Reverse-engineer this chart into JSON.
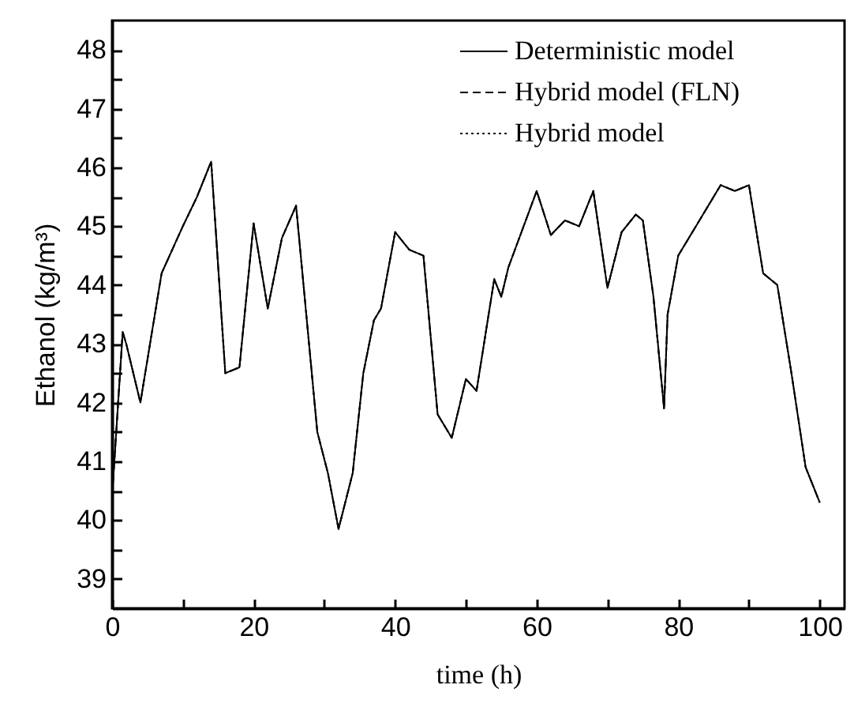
{
  "chart_data": {
    "type": "line",
    "xlabel": "time (h)",
    "ylabel": "Ethanol (kg/m³)",
    "x": [
      0,
      1.5,
      2,
      4,
      7,
      10,
      12,
      14,
      16,
      18,
      20,
      22,
      24,
      26,
      29,
      30.5,
      32,
      34,
      35.5,
      37,
      38,
      40,
      42,
      44,
      46,
      48,
      50,
      51.5,
      54,
      55,
      56,
      60,
      62,
      64,
      66,
      68,
      70,
      72,
      74,
      75,
      76.5,
      78,
      78.5,
      80,
      83,
      86,
      88,
      90,
      92,
      94,
      96,
      98,
      100
    ],
    "series": [
      {
        "name": "Deterministic model",
        "color": "#000000",
        "line_style": "solid",
        "values": [
          40.4,
          43.2,
          43,
          42,
          44.2,
          45,
          45.5,
          46.1,
          42.5,
          42.6,
          45.05,
          43.6,
          44.8,
          45.35,
          41.5,
          40.8,
          39.85,
          40.8,
          42.5,
          43.4,
          43.6,
          44.9,
          44.6,
          44.5,
          41.8,
          41.4,
          42.4,
          42.2,
          44.1,
          43.8,
          44.3,
          45.6,
          44.85,
          45.1,
          45,
          45.6,
          43.95,
          44.9,
          45.2,
          45.1,
          43.8,
          41.9,
          43.5,
          44.5,
          45.1,
          45.7,
          45.6,
          45.7,
          44.2,
          44,
          42.5,
          40.9,
          40.3
        ]
      },
      {
        "name": "Hybrid model (FLN)",
        "color": "#000000",
        "line_style": "dashed",
        "values": [
          40.4,
          43.2,
          43,
          42,
          44.2,
          45,
          45.5,
          46.1,
          42.5,
          42.6,
          45.05,
          43.6,
          44.8,
          45.35,
          41.5,
          40.8,
          39.85,
          40.8,
          42.5,
          43.4,
          43.6,
          44.9,
          44.6,
          44.5,
          41.8,
          41.4,
          42.4,
          42.2,
          44.1,
          43.8,
          44.3,
          45.6,
          44.85,
          45.1,
          45,
          45.6,
          43.95,
          44.9,
          45.2,
          45.1,
          43.8,
          41.9,
          43.5,
          44.5,
          45.1,
          45.7,
          45.6,
          45.7,
          44.2,
          44,
          42.5,
          40.9,
          40.3
        ]
      },
      {
        "name": "Hybrid model",
        "color": "#000000",
        "line_style": "dotted",
        "values": [
          40.4,
          43.2,
          43,
          42,
          44.2,
          45,
          45.5,
          46.1,
          42.5,
          42.6,
          45.05,
          43.6,
          44.8,
          45.35,
          41.5,
          40.8,
          39.85,
          40.8,
          42.5,
          43.4,
          43.6,
          44.9,
          44.6,
          44.5,
          41.8,
          41.4,
          42.4,
          42.2,
          44.1,
          43.8,
          44.3,
          45.6,
          44.85,
          45.1,
          45,
          45.6,
          43.95,
          44.9,
          45.2,
          45.1,
          43.8,
          41.9,
          43.5,
          44.5,
          45.1,
          45.7,
          45.6,
          45.7,
          44.2,
          44,
          42.5,
          40.9,
          40.3
        ]
      }
    ],
    "xlim": [
      0,
      103.5
    ],
    "xticks": [
      0,
      {
        "value": 10,
        "label": null
      },
      20,
      {
        "value": 30,
        "label": null
      },
      40,
      {
        "value": 50,
        "label": null
      },
      60,
      {
        "value": 70,
        "label": null
      },
      80,
      {
        "value": 90,
        "label": null
      },
      100
    ],
    "ylim": [
      38.5,
      48.5
    ],
    "yticks": [
      39,
      {
        "value": 39.5,
        "label": null
      },
      40,
      {
        "value": 40.5,
        "label": null
      },
      41,
      {
        "value": 41.5,
        "label": null
      },
      42,
      {
        "value": 42.5,
        "label": null
      },
      43,
      {
        "value": 43.5,
        "label": null
      },
      44,
      {
        "value": 44.5,
        "label": null
      },
      45,
      {
        "value": 45.5,
        "label": null
      },
      46,
      {
        "value": 46.5,
        "label": null
      },
      47,
      {
        "value": 47.5,
        "label": null
      },
      48
    ],
    "grid": false,
    "legend": "top"
  }
}
